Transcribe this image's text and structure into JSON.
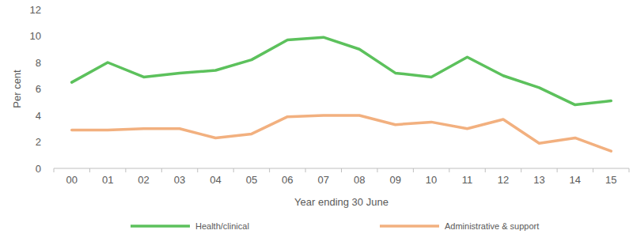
{
  "chart_data": {
    "type": "line",
    "x_label": "Year ending 30 June",
    "y_label": "Per cent",
    "categories": [
      "00",
      "01",
      "02",
      "03",
      "04",
      "05",
      "06",
      "07",
      "08",
      "09",
      "10",
      "11",
      "12",
      "13",
      "14",
      "15"
    ],
    "series": [
      {
        "name": "Health/clinical",
        "color": "#5cc15c",
        "values": [
          6.5,
          8.0,
          6.9,
          7.2,
          7.4,
          8.2,
          9.7,
          9.9,
          9.0,
          7.2,
          6.9,
          8.4,
          7.0,
          6.1,
          4.8,
          5.1
        ]
      },
      {
        "name": "Administrative & support",
        "color": "#f2b07f",
        "values": [
          2.9,
          2.9,
          3.0,
          3.0,
          2.3,
          2.6,
          3.9,
          4.0,
          4.0,
          3.3,
          3.5,
          3.0,
          3.7,
          1.9,
          2.3,
          1.3
        ]
      }
    ],
    "ylim": [
      0,
      12
    ],
    "yticks": [
      0,
      2,
      4,
      6,
      8,
      10,
      12
    ],
    "grid": false,
    "legend": "bottom"
  }
}
